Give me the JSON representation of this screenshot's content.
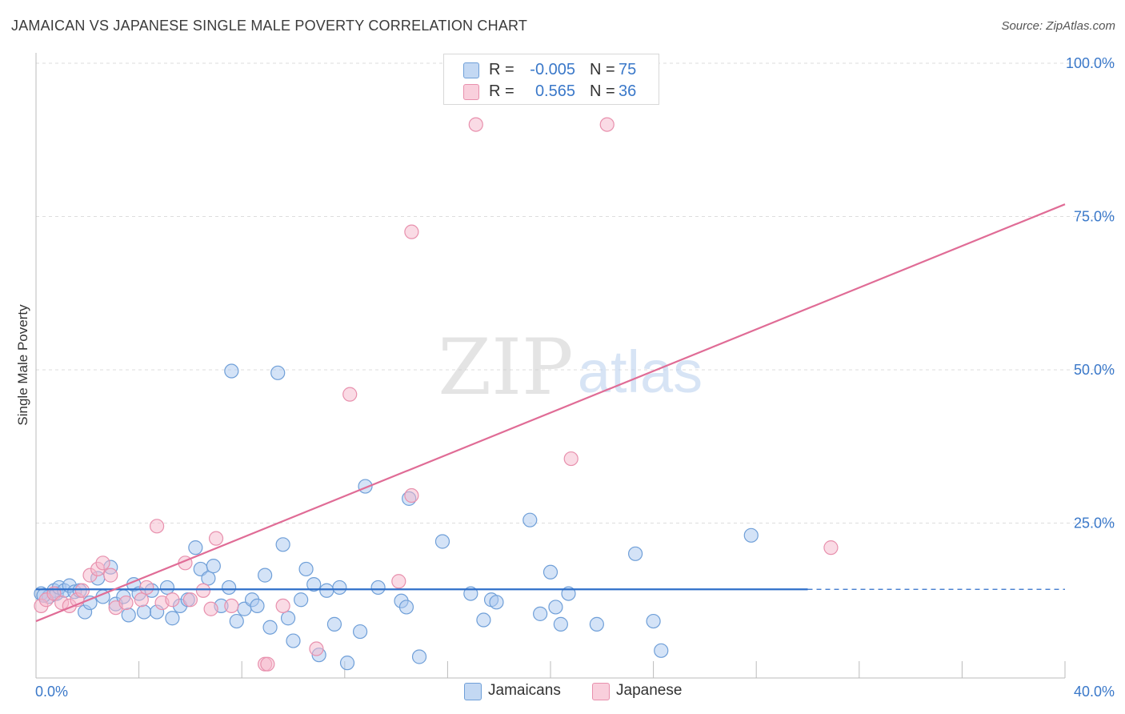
{
  "title": "JAMAICAN VS JAPANESE SINGLE MALE POVERTY CORRELATION CHART",
  "source": "Source: ZipAtlas.com",
  "watermark": {
    "zip": "ZIP",
    "atlas": "atlas"
  },
  "colors": {
    "jamaicans_fill": "#a9c8f0",
    "jamaicans_stroke": "#6f9fd8",
    "jamaicans_line": "#2f6fc9",
    "japanese_fill": "#f5b8cb",
    "japanese_stroke": "#e890ad",
    "japanese_line": "#e06c96",
    "axis_text": "#3a78c9",
    "grid": "#dddddd"
  },
  "stats": {
    "jamaicans": {
      "r_label": "R =",
      "r_value": "-0.005",
      "n_label": "N =",
      "n_value": "75"
    },
    "japanese": {
      "r_label": "R =",
      "r_value": "0.565",
      "n_label": "N =",
      "n_value": "36"
    }
  },
  "legend": {
    "jamaicans": "Jamaicans",
    "japanese": "Japanese"
  },
  "chart_data": {
    "type": "scatter",
    "title": "JAMAICAN VS JAPANESE SINGLE MALE POVERTY CORRELATION CHART",
    "xlabel": "",
    "ylabel": "Single Male Poverty",
    "xlim": [
      0,
      40
    ],
    "ylim": [
      0,
      100
    ],
    "x_tick_labels": {
      "min": "0.0%",
      "max": "40.0%"
    },
    "y_ticks": [
      25,
      50,
      75,
      100
    ],
    "y_tick_labels": [
      "25.0%",
      "50.0%",
      "75.0%",
      "100.0%"
    ],
    "grid": "horizontal dashed",
    "legend_position": "top-center",
    "series": [
      {
        "name": "Jamaicans",
        "trend": {
          "x": [
            0,
            30
          ],
          "y": [
            14.2,
            14.2
          ],
          "dashed_extension_to_x": 40
        },
        "points": [
          [
            0.2,
            13.5
          ],
          [
            0.5,
            13
          ],
          [
            0.7,
            14
          ],
          [
            0.8,
            13.5
          ],
          [
            0.9,
            14.5
          ],
          [
            1.1,
            14
          ],
          [
            1.3,
            14.8
          ],
          [
            1.5,
            13.8
          ],
          [
            1.7,
            14
          ],
          [
            1.9,
            10.5
          ],
          [
            2.1,
            12
          ],
          [
            2.4,
            16
          ],
          [
            2.6,
            13
          ],
          [
            2.9,
            17.8
          ],
          [
            3.1,
            11.8
          ],
          [
            3.4,
            13
          ],
          [
            3.6,
            10
          ],
          [
            3.8,
            15
          ],
          [
            4.0,
            13.5
          ],
          [
            4.2,
            10.5
          ],
          [
            4.5,
            14
          ],
          [
            4.7,
            10.5
          ],
          [
            5.1,
            14.5
          ],
          [
            5.3,
            9.5
          ],
          [
            5.6,
            11.5
          ],
          [
            5.9,
            12.5
          ],
          [
            6.2,
            21
          ],
          [
            6.4,
            17.5
          ],
          [
            6.7,
            16
          ],
          [
            6.9,
            18
          ],
          [
            7.2,
            11.5
          ],
          [
            7.5,
            14.5
          ],
          [
            7.6,
            49.8
          ],
          [
            7.8,
            9
          ],
          [
            8.1,
            11
          ],
          [
            8.4,
            12.5
          ],
          [
            8.6,
            11.5
          ],
          [
            8.9,
            16.5
          ],
          [
            9.1,
            8
          ],
          [
            9.4,
            49.5
          ],
          [
            9.6,
            21.5
          ],
          [
            9.8,
            9.5
          ],
          [
            10.0,
            5.8
          ],
          [
            10.3,
            12.5
          ],
          [
            10.5,
            17.5
          ],
          [
            10.8,
            15
          ],
          [
            11.0,
            3.5
          ],
          [
            11.3,
            14
          ],
          [
            11.6,
            8.5
          ],
          [
            11.8,
            14.5
          ],
          [
            12.1,
            2.2
          ],
          [
            12.6,
            7.3
          ],
          [
            12.8,
            31
          ],
          [
            13.3,
            14.5
          ],
          [
            14.2,
            12.3
          ],
          [
            14.4,
            11.3
          ],
          [
            14.5,
            29
          ],
          [
            14.9,
            3.2
          ],
          [
            15.8,
            22
          ],
          [
            16.9,
            13.5
          ],
          [
            17.4,
            9.2
          ],
          [
            17.7,
            12.5
          ],
          [
            17.9,
            12.1
          ],
          [
            19.2,
            25.5
          ],
          [
            19.6,
            10.2
          ],
          [
            20.0,
            17
          ],
          [
            20.2,
            11.3
          ],
          [
            20.4,
            8.5
          ],
          [
            20.7,
            13.5
          ],
          [
            21.8,
            8.5
          ],
          [
            23.3,
            20
          ],
          [
            24.0,
            9
          ],
          [
            24.3,
            4.2
          ],
          [
            27.8,
            23
          ],
          [
            0.3,
            13.2
          ]
        ]
      },
      {
        "name": "Japanese",
        "trend": {
          "x": [
            0,
            40
          ],
          "y": [
            9,
            77
          ]
        },
        "points": [
          [
            0.2,
            11.5
          ],
          [
            0.4,
            12.5
          ],
          [
            0.7,
            13.5
          ],
          [
            1.0,
            12
          ],
          [
            1.3,
            11.5
          ],
          [
            1.6,
            12.5
          ],
          [
            1.8,
            14
          ],
          [
            2.1,
            16.5
          ],
          [
            2.4,
            17.5
          ],
          [
            2.6,
            18.5
          ],
          [
            2.9,
            16.5
          ],
          [
            3.1,
            11.2
          ],
          [
            3.5,
            12
          ],
          [
            4.1,
            12.5
          ],
          [
            4.3,
            14.5
          ],
          [
            4.7,
            24.5
          ],
          [
            4.9,
            12
          ],
          [
            5.3,
            12.5
          ],
          [
            5.8,
            18.5
          ],
          [
            6.0,
            12.5
          ],
          [
            6.5,
            14
          ],
          [
            6.8,
            11
          ],
          [
            7.0,
            22.5
          ],
          [
            7.6,
            11.5
          ],
          [
            8.9,
            2
          ],
          [
            9.0,
            2
          ],
          [
            9.6,
            11.5
          ],
          [
            10.9,
            4.5
          ],
          [
            12.2,
            46
          ],
          [
            14.1,
            15.5
          ],
          [
            14.6,
            72.5
          ],
          [
            14.6,
            29.5
          ],
          [
            17.1,
            90
          ],
          [
            20.8,
            35.5
          ],
          [
            22.2,
            90
          ],
          [
            30.9,
            21
          ]
        ]
      }
    ]
  }
}
